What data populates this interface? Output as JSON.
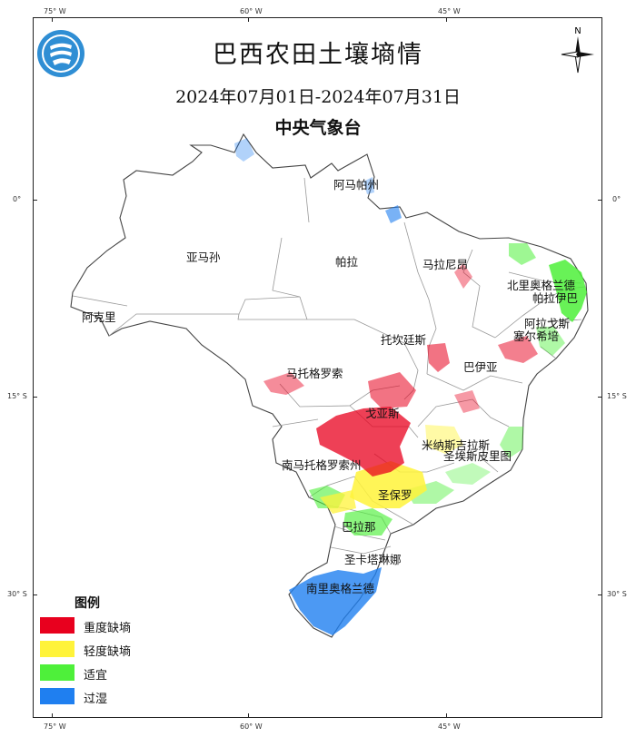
{
  "map": {
    "title": "巴西农田土壤墒情",
    "date_range": "2024年07月01日-2024年07月31日",
    "agency": "中央气象台",
    "north_label": "N",
    "logo_icon": "cma-logo-icon",
    "longitude_ticks": [
      "75° W",
      "60° W",
      "45° W"
    ],
    "latitude_ticks": [
      "0°",
      "15° S",
      "30° S"
    ],
    "states": [
      "阿马帕州",
      "亚马孙",
      "帕拉",
      "马拉尼昂",
      "北里奥格兰德",
      "帕拉伊巴",
      "阿克里",
      "阿拉戈斯",
      "塞尔希培",
      "托坎廷斯",
      "巴伊亚",
      "马托格罗索",
      "戈亚斯",
      "米纳斯吉拉斯",
      "南马托格罗索州",
      "圣埃斯皮里图",
      "圣保罗",
      "巴拉那",
      "圣卡塔琳娜",
      "南里奥格兰德"
    ],
    "legend": {
      "title": "图例",
      "items": [
        {
          "label": "重度缺墒",
          "color": "#e8001e"
        },
        {
          "label": "轻度缺墒",
          "color": "#fff33a"
        },
        {
          "label": "适宜",
          "color": "#4ef03a"
        },
        {
          "label": "过湿",
          "color": "#1f7ff0"
        }
      ]
    }
  }
}
